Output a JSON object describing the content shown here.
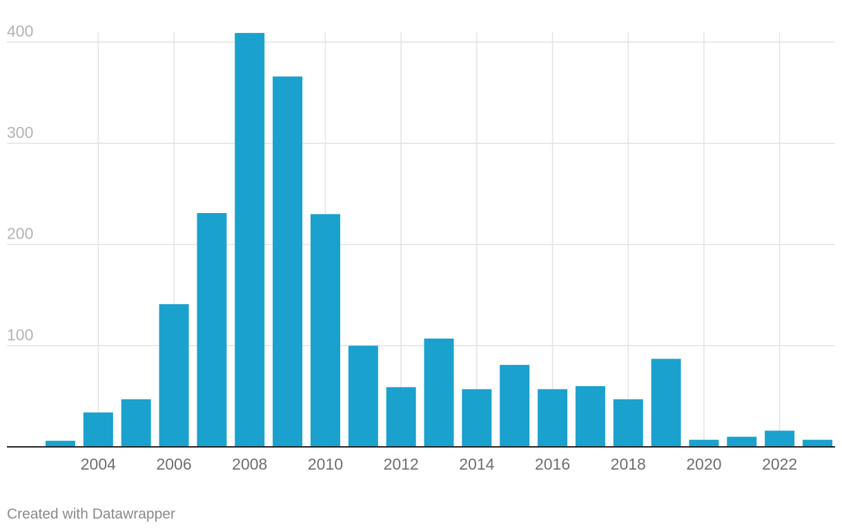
{
  "footer": "Created with Datawrapper",
  "chart_data": {
    "type": "bar",
    "title": "",
    "xlabel": "",
    "ylabel": "",
    "categories": [
      "2003",
      "2004",
      "2005",
      "2006",
      "2007",
      "2008",
      "2009",
      "2010",
      "2011",
      "2012",
      "2013",
      "2014",
      "2015",
      "2016",
      "2017",
      "2018",
      "2019",
      "2020",
      "2021",
      "2022",
      "2023"
    ],
    "values": [
      6,
      34,
      47,
      141,
      231,
      409,
      366,
      230,
      100,
      59,
      107,
      57,
      81,
      57,
      60,
      47,
      87,
      7,
      10,
      16,
      7
    ],
    "ylim": [
      0,
      410
    ],
    "yticks": [
      100,
      200,
      300,
      400
    ],
    "xtick_labels": [
      "2004",
      "2006",
      "2008",
      "2010",
      "2012",
      "2014",
      "2016",
      "2018",
      "2020",
      "2022"
    ],
    "bar_color": "#1aa1cd",
    "grid": true,
    "legend": "none"
  }
}
